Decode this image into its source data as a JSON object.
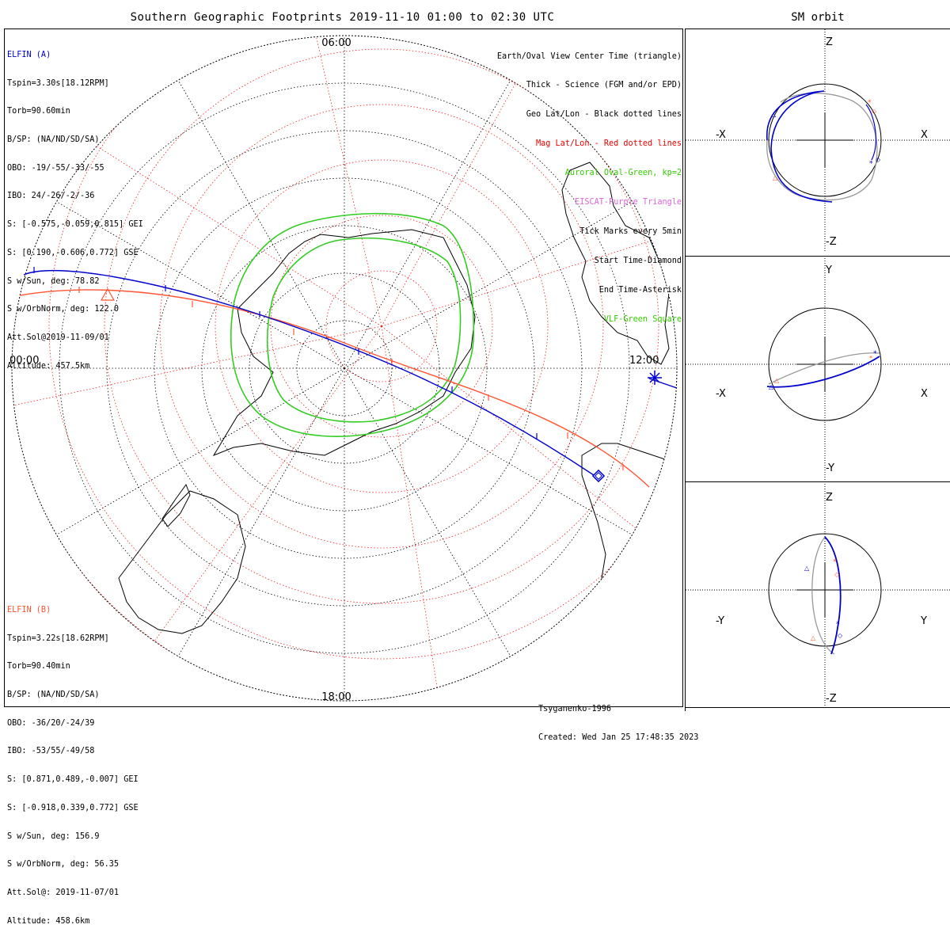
{
  "title": "Southern Geographic Footprints 2019-11-10 01:00 to 02:30 UTC",
  "right_title": "SM orbit",
  "map": {
    "time_labels": {
      "top": "06:00",
      "left": "00:00",
      "right": "12:00",
      "bottom": "18:00"
    },
    "colors": {
      "elfin_a": "#0000cc",
      "elfin_b": "#ff5533",
      "geo_grid": "#000000",
      "mag_grid": "#ee2222",
      "auroral_oval": "#33cc22"
    }
  },
  "elfin_a": {
    "name": "ELFIN (A)",
    "lines": [
      "Tspin=3.30s[18.12RPM]",
      "Torb=90.60min",
      "B/SP: (NA/ND/SD/SA)",
      "OBO: -19/-55/-33/-55",
      "IBO: 24/-26/-2/-36",
      "S: [-0.575,-0.059,0.815] GEI",
      "S: [0.190,-0.606,0.772] GSE",
      "S w/Sun, deg: 78.82",
      "S w/OrbNorm, deg: 122.0",
      "Att.Sol@2019-11-09/01",
      "Altitude: 457.5km"
    ]
  },
  "elfin_b": {
    "name": "ELFIN (B)",
    "lines": [
      "Tspin=3.22s[18.62RPM]",
      "Torb=90.40min",
      "B/SP: (NA/ND/SD/SA)",
      "OBO: -36/20/-24/39",
      "IBO: -53/55/-49/58",
      "S: [0.871,0.489,-0.007] GEI",
      "S: [-0.918,0.339,0.772] GSE",
      "S w/Sun, deg: 156.9",
      "S w/OrbNorm, deg: 56.35",
      "Att.Sol@: 2019-11-07/01",
      "Altitude: 458.6km"
    ]
  },
  "legend": [
    {
      "text": "Earth/Oval View Center Time (triangle)",
      "color": "#000000"
    },
    {
      "text": "Thick - Science (FGM and/or EPD)",
      "color": "#000000"
    },
    {
      "text": "Geo Lat/Lon - Black dotted lines",
      "color": "#000000"
    },
    {
      "text": "Mag Lat/Lon - Red dotted lines",
      "color": "#ee0000"
    },
    {
      "text": "Auroral Oval-Green, kp=2",
      "color": "#33cc00"
    },
    {
      "text": "EISCAT-Purple Triangle",
      "color": "#dd66dd"
    },
    {
      "text": "Tick Marks every 5min",
      "color": "#000000"
    },
    {
      "text": "Start Time-Diamond",
      "color": "#000000"
    },
    {
      "text": "End Time-Asterisk",
      "color": "#000000"
    },
    {
      "text": "VLF-Green Square",
      "color": "#33cc00"
    }
  ],
  "footer": {
    "model": "Tsyganenko-1996",
    "created": "Created: Wed Jan 25 17:48:35 2023"
  },
  "orbit_panels": [
    {
      "left": "-X",
      "right": "X",
      "top": "Z",
      "bottom": "-Z"
    },
    {
      "left": "-X",
      "right": "X",
      "top": "Y",
      "bottom": "-Y"
    },
    {
      "left": "-Y",
      "right": "Y",
      "top": "Z",
      "bottom": "-Z"
    }
  ]
}
